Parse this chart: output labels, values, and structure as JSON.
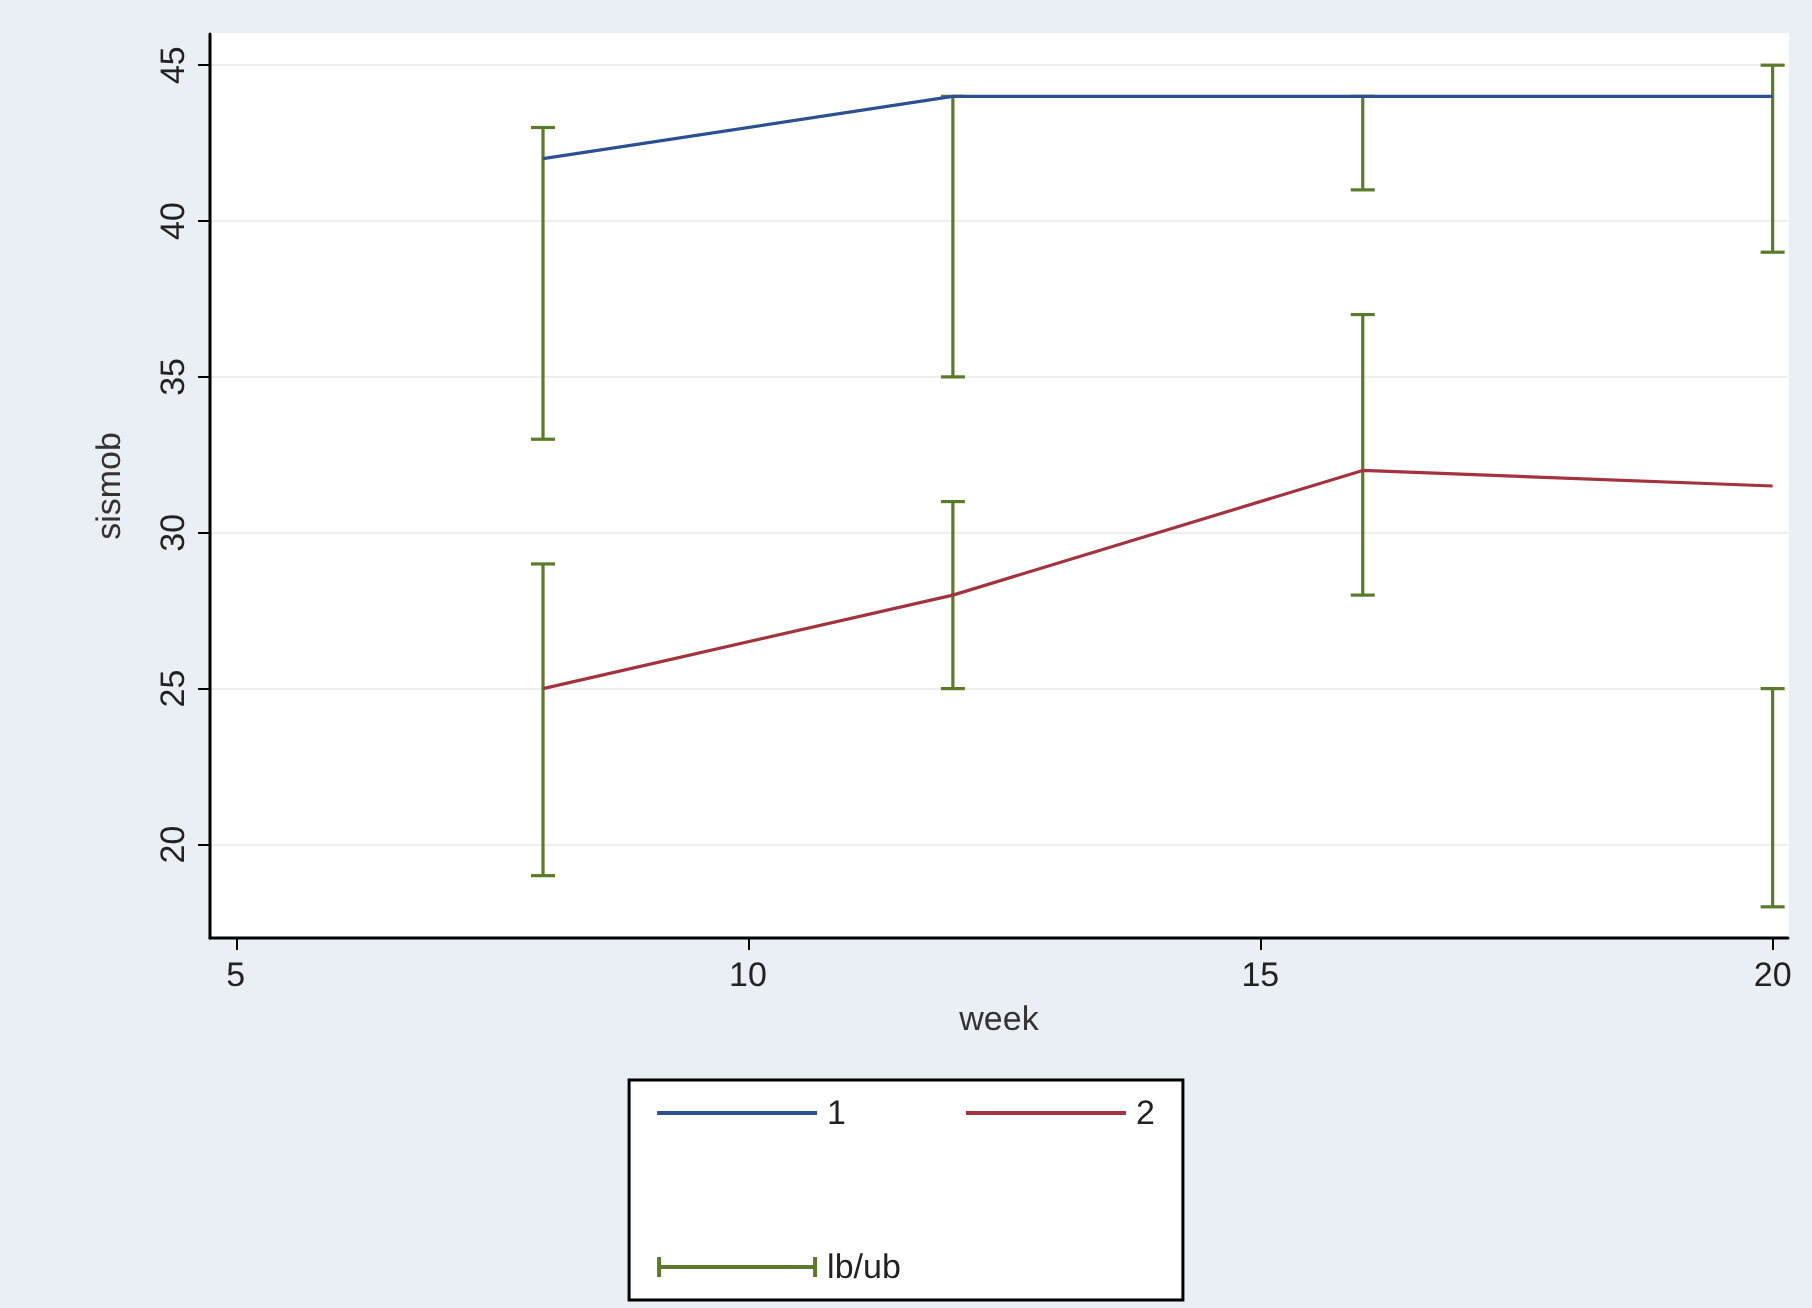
{
  "chart_data": {
    "type": "line",
    "xlabel": "week",
    "ylabel": "sismob",
    "xlim": [
      4.75,
      20.15
    ],
    "xticks": [
      5,
      10,
      15,
      20
    ],
    "ylim": [
      17,
      46
    ],
    "yticks": [
      20,
      25,
      30,
      35,
      40,
      45
    ],
    "grid": "y",
    "legend": "bottom",
    "marker": "none",
    "line_style": "solid",
    "series": [
      {
        "name": "1",
        "color": "#2d5190",
        "x": [
          8,
          12,
          16,
          20
        ],
        "values": [
          42,
          44,
          44,
          44
        ],
        "errors": [
          [
            33,
            43
          ],
          [
            35,
            44
          ],
          [
            41,
            44
          ],
          [
            39,
            45
          ]
        ]
      },
      {
        "name": "2",
        "color": "#a3333f",
        "x": [
          8,
          12,
          16,
          20
        ],
        "values": [
          25,
          28,
          32,
          31.5
        ],
        "errors": [
          [
            19,
            29
          ],
          [
            25,
            31
          ],
          [
            28,
            37
          ],
          [
            18,
            25
          ]
        ]
      },
      {
        "name": "lb/ub",
        "color": "#5b7a2a"
      }
    ]
  }
}
